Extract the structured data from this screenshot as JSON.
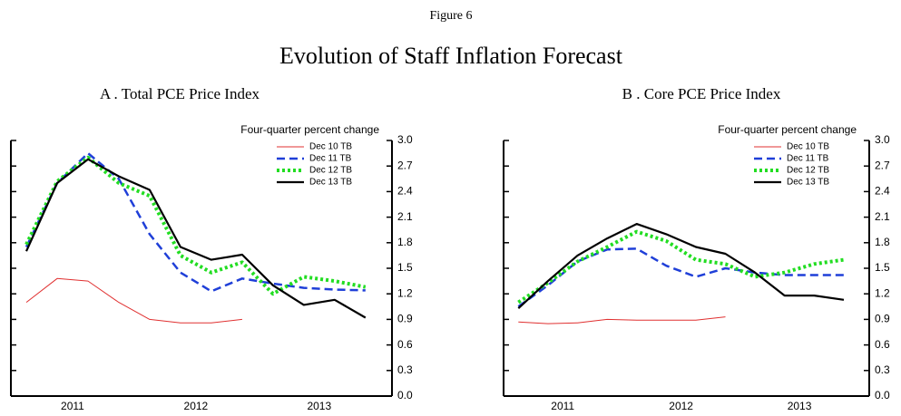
{
  "figure": "Figure 6",
  "title": "Evolution of Staff Inflation Forecast",
  "chart_data": [
    {
      "type": "line",
      "title": "A .  Total PCE Price Index",
      "y_label": "Four-quarter percent change",
      "x": [
        2011.125,
        2011.375,
        2011.625,
        2011.875,
        2012.125,
        2012.375,
        2012.625,
        2012.875,
        2013.125,
        2013.375,
        2013.625,
        2013.875
      ],
      "xlim": [
        2011,
        2014.09
      ],
      "xticks": [
        {
          "value": 2011.5,
          "label": "2011"
        },
        {
          "value": 2012.5,
          "label": "2012"
        },
        {
          "value": 2013.5,
          "label": "2013"
        }
      ],
      "ylim": [
        0,
        3
      ],
      "yticks": [
        {
          "value": 0,
          "label": "0.0"
        },
        0.3,
        0.6,
        0.9,
        1.2,
        1.5,
        1.8,
        2.1,
        2.4,
        2.7,
        {
          "value": 3,
          "label": "3.0"
        }
      ],
      "legend": "top-right",
      "series": [
        {
          "name": "Dec 10  TB",
          "color": "#e03030",
          "style": "solid",
          "values": [
            1.1,
            1.38,
            1.35,
            1.1,
            0.9,
            0.86,
            0.86,
            0.9,
            null,
            null,
            null,
            null
          ]
        },
        {
          "name": "Dec 11  TB",
          "color": "#1f3fd8",
          "style": "dashed",
          "values": [
            1.75,
            2.5,
            2.85,
            2.55,
            1.9,
            1.45,
            1.23,
            1.38,
            1.32,
            1.27,
            1.25,
            1.24
          ]
        },
        {
          "name": "Dec 12  TB",
          "color": "#22dd22",
          "style": "dotted",
          "values": [
            1.78,
            2.52,
            2.8,
            2.5,
            2.35,
            1.65,
            1.45,
            1.57,
            1.2,
            1.4,
            1.35,
            1.28
          ]
        },
        {
          "name": "Dec 13  TB",
          "color": "#000000",
          "style": "solid-thick",
          "values": [
            1.7,
            2.5,
            2.78,
            2.58,
            2.42,
            1.75,
            1.6,
            1.66,
            1.3,
            1.07,
            1.13,
            0.92
          ]
        }
      ]
    },
    {
      "type": "line",
      "title": "B .  Core PCE Price Index",
      "y_label": "Four-quarter percent change",
      "x": [
        2011.125,
        2011.375,
        2011.625,
        2011.875,
        2012.125,
        2012.375,
        2012.625,
        2012.875,
        2013.125,
        2013.375,
        2013.625,
        2013.875
      ],
      "xlim": [
        2011,
        2014.09
      ],
      "xticks": [
        {
          "value": 2011.5,
          "label": "2011"
        },
        {
          "value": 2012.5,
          "label": "2012"
        },
        {
          "value": 2013.5,
          "label": "2013"
        }
      ],
      "ylim": [
        0,
        3
      ],
      "yticks": [
        {
          "value": 0,
          "label": "0.0"
        },
        0.3,
        0.6,
        0.9,
        1.2,
        1.5,
        1.8,
        2.1,
        2.4,
        2.7,
        {
          "value": 3,
          "label": "3.0"
        }
      ],
      "legend": "top-right",
      "series": [
        {
          "name": "Dec 10  TB",
          "color": "#e03030",
          "style": "solid",
          "values": [
            0.87,
            0.85,
            0.86,
            0.9,
            0.89,
            0.89,
            0.89,
            0.93,
            null,
            null,
            null,
            null
          ]
        },
        {
          "name": "Dec 11  TB",
          "color": "#1f3fd8",
          "style": "dashed",
          "values": [
            1.05,
            1.3,
            1.58,
            1.72,
            1.73,
            1.53,
            1.4,
            1.5,
            1.45,
            1.42,
            1.42,
            1.42
          ]
        },
        {
          "name": "Dec 12  TB",
          "color": "#22dd22",
          "style": "dotted",
          "values": [
            1.1,
            1.33,
            1.58,
            1.75,
            1.93,
            1.82,
            1.6,
            1.55,
            1.4,
            1.45,
            1.55,
            1.6
          ]
        },
        {
          "name": "Dec 13  TB",
          "color": "#000000",
          "style": "solid-thick",
          "values": [
            1.03,
            1.35,
            1.65,
            1.85,
            2.02,
            1.9,
            1.75,
            1.67,
            1.45,
            1.18,
            1.18,
            1.13
          ]
        }
      ]
    }
  ]
}
